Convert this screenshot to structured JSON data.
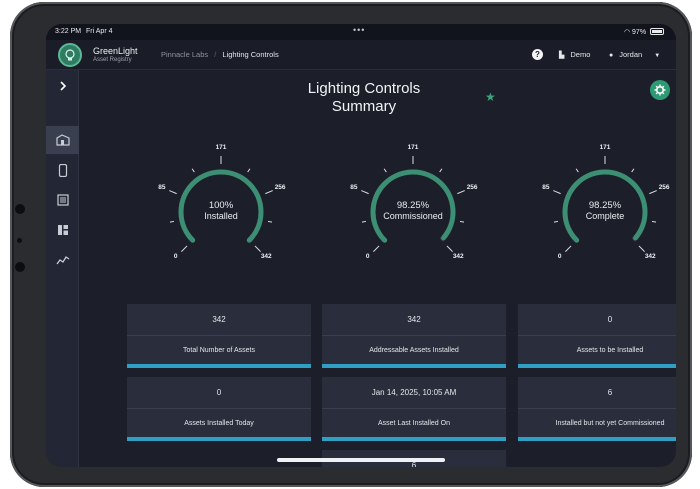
{
  "status_bar": {
    "time": "3:22 PM",
    "date": "Fri Apr 4",
    "battery": "97%"
  },
  "app": {
    "name": "GreenLight",
    "subtitle": "Asset Registry"
  },
  "breadcrumb": {
    "org": "Pinnacle Labs",
    "page": "Lighting Controls"
  },
  "header": {
    "environment": "Demo",
    "user": "Jordan"
  },
  "page": {
    "title_line1": "Lighting Controls",
    "title_line2": "Summary"
  },
  "gauges": [
    {
      "value": "100%",
      "label": "Installed",
      "fraction": 1.0,
      "ticks": [
        "0",
        "85",
        "171",
        "256",
        "342"
      ]
    },
    {
      "value": "98.25%",
      "label": "Commissioned",
      "fraction": 0.9825,
      "ticks": [
        "0",
        "85",
        "171",
        "256",
        "342"
      ]
    },
    {
      "value": "98.25%",
      "label": "Complete",
      "fraction": 0.9825,
      "ticks": [
        "0",
        "85",
        "171",
        "256",
        "342"
      ]
    }
  ],
  "cards": [
    {
      "value": "342",
      "label": "Total Number of Assets"
    },
    {
      "value": "342",
      "label": "Addressable Assets Installed"
    },
    {
      "value": "0",
      "label": "Assets to be Installed"
    },
    {
      "value": "0",
      "label": "Assets Installed Today"
    },
    {
      "value": "Jan 14, 2025, 10:05 AM",
      "label": "Asset Last Installed On"
    },
    {
      "value": "6",
      "label": "Installed but not yet Commissioned"
    },
    {
      "value": "6",
      "label": ""
    }
  ],
  "colors": {
    "accent": "#3fa07c",
    "gauge_fill": "#3d8f74",
    "card_bar": "#2f9fc4",
    "background": "#1c1f2a"
  }
}
